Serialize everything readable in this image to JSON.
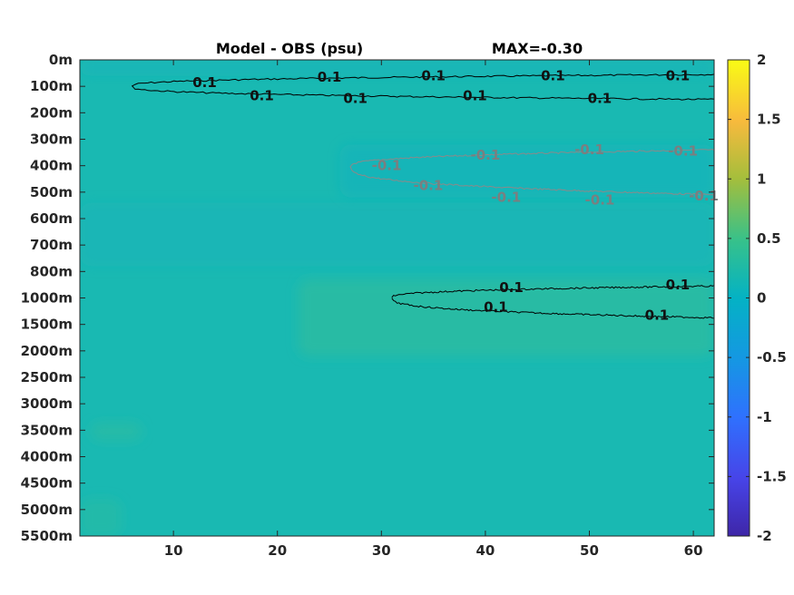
{
  "chart_data": {
    "type": "heatmap",
    "title": "Model - OBS (psu)",
    "max_label": "MAX=-0.30",
    "x_ticks": [
      10,
      20,
      30,
      40,
      50,
      60
    ],
    "xlim": [
      1,
      62
    ],
    "y_tick_labels": [
      "0m",
      "100m",
      "200m",
      "300m",
      "400m",
      "500m",
      "600m",
      "700m",
      "800m",
      "1000m",
      "1500m",
      "2000m",
      "2500m",
      "3000m",
      "3500m",
      "4000m",
      "4500m",
      "5000m",
      "5500m"
    ],
    "colorbar": {
      "range": [
        -2,
        2
      ],
      "ticks": [
        2,
        1.5,
        1,
        0.5,
        0,
        -0.5,
        -1,
        -1.5,
        -2
      ],
      "tick_labels": [
        "2",
        "1.5",
        "1",
        "0.5",
        "0",
        "-0.5",
        "-1",
        "-1.5",
        "-2"
      ],
      "colormap": "parula"
    },
    "contour_level_label": "0.1",
    "contour_label_neg": "-0.1",
    "contours": [
      {
        "level": 0.1,
        "depth_index_start": 1.0,
        "depth_index_end": 0.55,
        "x_start": 6,
        "x_end": 62,
        "tip_depth_index": 1.05
      },
      {
        "level": 0.1,
        "depth_index_start": 1.0,
        "depth_index_end": 1.5,
        "x_start": 6,
        "x_end": 62,
        "tip_depth_index": 1.05
      },
      {
        "level": -0.1,
        "depth_index_start": 4.05,
        "depth_index_end": 3.4,
        "x_start": 27,
        "x_end": 62
      },
      {
        "level": -0.1,
        "depth_index_start": 4.05,
        "depth_index_end": 5.1,
        "x_start": 27,
        "x_end": 62
      },
      {
        "level": 0.1,
        "depth_index_start": 9.0,
        "depth_index_end": 8.55,
        "x_start": 31,
        "x_end": 62
      },
      {
        "level": 0.1,
        "depth_index_start": 9.0,
        "depth_index_end": 9.75,
        "x_start": 31,
        "x_end": 62
      }
    ],
    "contour_labels": [
      {
        "text": "0.1",
        "x": 13.0,
        "y": 0.85,
        "style": "dark"
      },
      {
        "text": "0.1",
        "x": 18.5,
        "y": 1.35,
        "style": "dark"
      },
      {
        "text": "0.1",
        "x": 25.0,
        "y": 0.65,
        "style": "dark"
      },
      {
        "text": "0.1",
        "x": 27.5,
        "y": 1.45,
        "style": "dark"
      },
      {
        "text": "0.1",
        "x": 35.0,
        "y": 0.6,
        "style": "dark"
      },
      {
        "text": "0.1",
        "x": 39.0,
        "y": 1.35,
        "style": "dark"
      },
      {
        "text": "0.1",
        "x": 46.5,
        "y": 0.6,
        "style": "dark"
      },
      {
        "text": "0.1",
        "x": 51.0,
        "y": 1.45,
        "style": "dark"
      },
      {
        "text": "0.1",
        "x": 58.5,
        "y": 0.6,
        "style": "dark"
      },
      {
        "text": "0.1",
        "x": 42.5,
        "y": 8.6,
        "style": "dark"
      },
      {
        "text": "0.1",
        "x": 41.0,
        "y": 9.35,
        "style": "dark"
      },
      {
        "text": "0.1",
        "x": 58.5,
        "y": 8.5,
        "style": "dark"
      },
      {
        "text": "0.1",
        "x": 56.5,
        "y": 9.65,
        "style": "dark"
      },
      {
        "text": "-0.1",
        "x": 40.0,
        "y": 3.6,
        "style": "light"
      },
      {
        "text": "-0.1",
        "x": 50.0,
        "y": 3.4,
        "style": "light"
      },
      {
        "text": "-0.1",
        "x": 59.0,
        "y": 3.45,
        "style": "light"
      },
      {
        "text": "-0.1",
        "x": 42.0,
        "y": 5.2,
        "style": "light"
      },
      {
        "text": "-0.1",
        "x": 51.0,
        "y": 5.3,
        "style": "light"
      },
      {
        "text": "-0.1",
        "x": 61.0,
        "y": 5.15,
        "style": "light"
      },
      {
        "text": "-0.1",
        "x": 30.5,
        "y": 4.0,
        "style": "light"
      },
      {
        "text": "-0.1",
        "x": 34.5,
        "y": 4.75,
        "style": "light"
      }
    ],
    "colors": {
      "background_field": "#19b9b2",
      "slight_positive": "#2dbca0",
      "slight_negative": "#12b2bd",
      "contour_dark": "#000000",
      "contour_light": "#8a8a8a"
    }
  }
}
